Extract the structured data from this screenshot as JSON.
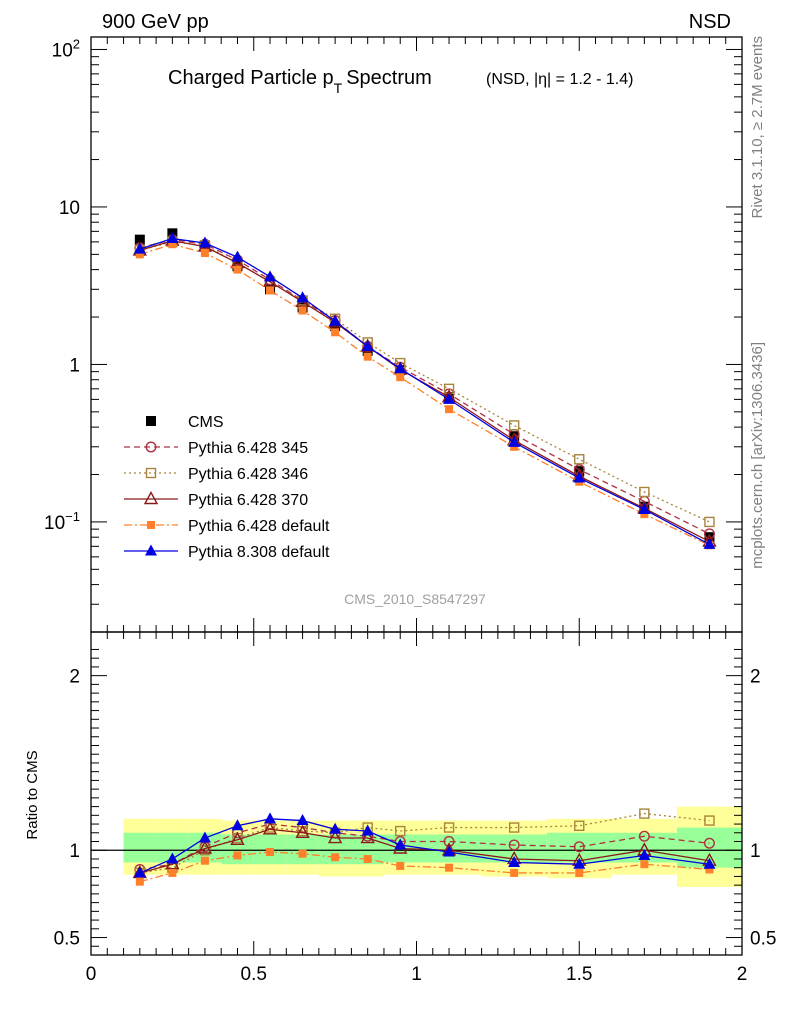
{
  "header": {
    "energy_label": "900 GeV pp",
    "process_label": "NSD",
    "rivet_label": "Rivet 3.1.10, ≥ 2.7M events",
    "source_label": "mcplots.cern.ch [arXiv:1306.3436]"
  },
  "chart_data": {
    "type": "line",
    "title": "Charged Particle p",
    "title_subscript": "T",
    "title_word": "Spectrum",
    "subtitle": "(NSD, |η| = 1.2 - 1.4)",
    "analysis_id": "CMS_2010_S8547297",
    "xlim": [
      0,
      2
    ],
    "ylim": [
      0.02,
      120
    ],
    "yscale": "log",
    "x_ticks": [
      "0",
      "0.5",
      "1",
      "1.5",
      "2"
    ],
    "y_ticks": [
      {
        "base": "10",
        "exp": "−1",
        "value": 0.1
      },
      {
        "base": "1",
        "exp": "",
        "value": 1
      },
      {
        "base": "10",
        "exp": "",
        "value": 10
      },
      {
        "base": "10",
        "exp": "2",
        "value": 100
      }
    ],
    "x": [
      0.15,
      0.25,
      0.35,
      0.45,
      0.55,
      0.65,
      0.75,
      0.85,
      0.95,
      1.1,
      1.3,
      1.5,
      1.7,
      1.9
    ],
    "series": [
      {
        "name": "CMS",
        "color": "#000000",
        "marker": "filled-square",
        "line": "none",
        "values": [
          6.2,
          6.8,
          5.7,
          4.2,
          3.0,
          2.3,
          1.75,
          1.22,
          0.92,
          0.62,
          0.35,
          0.21,
          0.125,
          0.08
        ]
      },
      {
        "name": "Pythia 6.428 345",
        "color": "#b03040",
        "marker": "open-circle",
        "line": "dashed",
        "values": [
          5.5,
          6.2,
          5.8,
          4.6,
          3.45,
          2.55,
          1.9,
          1.3,
          0.96,
          0.65,
          0.36,
          0.215,
          0.135,
          0.084
        ]
      },
      {
        "name": "Pythia 6.428 346",
        "color": "#a8843c",
        "marker": "open-square",
        "line": "dotted",
        "values": [
          5.3,
          6.0,
          5.7,
          4.4,
          3.35,
          2.55,
          1.95,
          1.38,
          1.02,
          0.7,
          0.41,
          0.25,
          0.155,
          0.1
        ]
      },
      {
        "name": "Pythia 6.428 370",
        "color": "#8b1a1a",
        "marker": "open-triangle",
        "line": "solid",
        "values": [
          5.3,
          6.1,
          5.6,
          4.4,
          3.35,
          2.5,
          1.85,
          1.3,
          0.93,
          0.62,
          0.33,
          0.195,
          0.122,
          0.075
        ]
      },
      {
        "name": "Pythia 6.428 default",
        "color": "#ff7f2a",
        "marker": "filled-square-small",
        "line": "dashdot",
        "values": [
          5.0,
          5.8,
          5.1,
          4.0,
          2.95,
          2.2,
          1.6,
          1.12,
          0.83,
          0.52,
          0.3,
          0.18,
          0.112,
          0.071
        ]
      },
      {
        "name": "Pythia 8.308 default",
        "color": "#0000e0",
        "marker": "filled-triangle",
        "line": "solid",
        "values": [
          5.4,
          6.3,
          5.9,
          4.8,
          3.6,
          2.65,
          1.88,
          1.3,
          0.94,
          0.6,
          0.32,
          0.19,
          0.12,
          0.072
        ]
      }
    ],
    "ratio": {
      "ylabel": "Ratio to CMS",
      "ylim": [
        0.4,
        2.25
      ],
      "y_ticks": [
        "0.5",
        "1",
        "2"
      ],
      "y_tick_values": [
        0.5,
        1,
        2
      ],
      "bands": [
        {
          "x0": 0.1,
          "x1": 0.2,
          "inner": [
            0.93,
            1.1
          ],
          "outer": [
            0.86,
            1.18
          ]
        },
        {
          "x0": 0.2,
          "x1": 0.3,
          "inner": [
            0.93,
            1.1
          ],
          "outer": [
            0.86,
            1.18
          ]
        },
        {
          "x0": 0.3,
          "x1": 0.4,
          "inner": [
            0.93,
            1.1
          ],
          "outer": [
            0.86,
            1.18
          ]
        },
        {
          "x0": 0.4,
          "x1": 0.5,
          "inner": [
            0.92,
            1.09
          ],
          "outer": [
            0.86,
            1.17
          ]
        },
        {
          "x0": 0.5,
          "x1": 0.6,
          "inner": [
            0.92,
            1.09
          ],
          "outer": [
            0.86,
            1.17
          ]
        },
        {
          "x0": 0.6,
          "x1": 0.7,
          "inner": [
            0.92,
            1.09
          ],
          "outer": [
            0.86,
            1.17
          ]
        },
        {
          "x0": 0.7,
          "x1": 0.8,
          "inner": [
            0.92,
            1.09
          ],
          "outer": [
            0.85,
            1.17
          ]
        },
        {
          "x0": 0.8,
          "x1": 0.9,
          "inner": [
            0.92,
            1.09
          ],
          "outer": [
            0.85,
            1.17
          ]
        },
        {
          "x0": 0.9,
          "x1": 1.0,
          "inner": [
            0.93,
            1.09
          ],
          "outer": [
            0.86,
            1.17
          ]
        },
        {
          "x0": 1.0,
          "x1": 1.2,
          "inner": [
            0.93,
            1.09
          ],
          "outer": [
            0.86,
            1.17
          ]
        },
        {
          "x0": 1.2,
          "x1": 1.4,
          "inner": [
            0.93,
            1.09
          ],
          "outer": [
            0.85,
            1.17
          ]
        },
        {
          "x0": 1.4,
          "x1": 1.6,
          "inner": [
            0.93,
            1.1
          ],
          "outer": [
            0.84,
            1.18
          ]
        },
        {
          "x0": 1.6,
          "x1": 1.8,
          "inner": [
            0.93,
            1.1
          ],
          "outer": [
            0.86,
            1.18
          ]
        },
        {
          "x0": 1.8,
          "x1": 2.0,
          "inner": [
            0.9,
            1.13
          ],
          "outer": [
            0.79,
            1.25
          ]
        }
      ],
      "series": [
        {
          "name": "Pythia 6.428 345",
          "values": [
            0.89,
            0.92,
            1.02,
            1.1,
            1.15,
            1.13,
            1.1,
            1.08,
            1.05,
            1.05,
            1.03,
            1.02,
            1.08,
            1.04
          ]
        },
        {
          "name": "Pythia 6.428 346",
          "values": [
            0.87,
            0.9,
            1.0,
            1.07,
            1.13,
            1.11,
            1.1,
            1.13,
            1.11,
            1.13,
            1.13,
            1.14,
            1.21,
            1.17
          ]
        },
        {
          "name": "Pythia 6.428 370",
          "values": [
            0.87,
            0.92,
            1.01,
            1.06,
            1.12,
            1.1,
            1.07,
            1.07,
            1.01,
            1.0,
            0.95,
            0.94,
            1.0,
            0.94
          ]
        },
        {
          "name": "Pythia 6.428 default",
          "values": [
            0.82,
            0.87,
            0.94,
            0.97,
            0.99,
            0.98,
            0.96,
            0.95,
            0.91,
            0.9,
            0.87,
            0.87,
            0.92,
            0.89
          ]
        },
        {
          "name": "Pythia 8.308 default",
          "values": [
            0.87,
            0.95,
            1.07,
            1.14,
            1.18,
            1.17,
            1.12,
            1.11,
            1.03,
            0.99,
            0.93,
            0.92,
            0.97,
            0.92
          ]
        }
      ]
    },
    "colors": {
      "band_inner": "#99ff99",
      "band_outer": "#ffff99",
      "frame": "#000000",
      "side_text": "#808080"
    }
  }
}
